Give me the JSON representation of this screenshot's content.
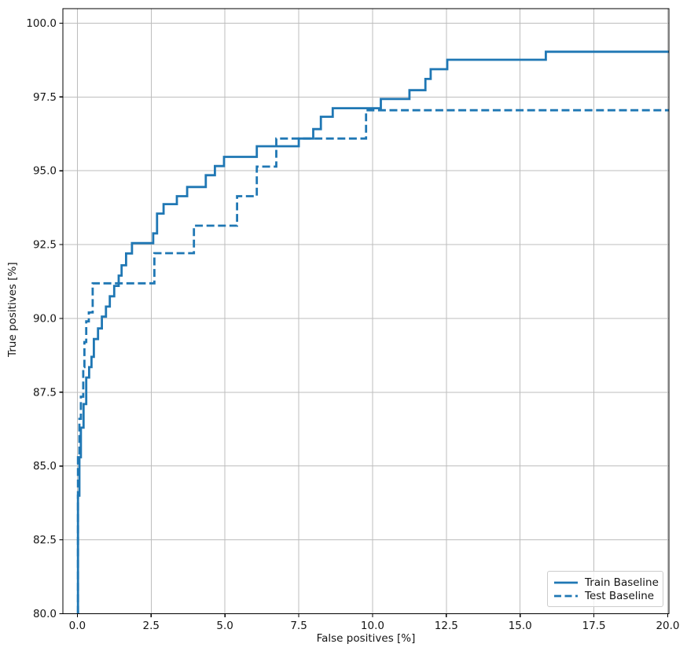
{
  "chart_data": {
    "type": "line",
    "subtype": "step-roc",
    "title": "",
    "xlabel": "False positives [%]",
    "ylabel": "True positives [%]",
    "xlim": [
      -0.49,
      20.04
    ],
    "ylim": [
      80,
      100.49
    ],
    "grid": true,
    "x_ticks": {
      "values": [
        0,
        2.5,
        5,
        7.5,
        10,
        12.5,
        15,
        17.5,
        20
      ],
      "labels": [
        "0.0",
        "2.5",
        "5.0",
        "7.5",
        "10.0",
        "12.5",
        "15.0",
        "17.5",
        "20.0"
      ]
    },
    "y_ticks": {
      "values": [
        80,
        82.5,
        85,
        87.5,
        90,
        92.5,
        95,
        97.5,
        100
      ],
      "labels": [
        "80.0",
        "82.5",
        "85.0",
        "87.5",
        "90.0",
        "92.5",
        "95.0",
        "97.5",
        "100.0"
      ]
    },
    "legend": {
      "position": "lower right",
      "entries": [
        {
          "label": "Train Baseline",
          "style": "solid"
        },
        {
          "label": "Test Baseline",
          "style": "dashed"
        }
      ]
    },
    "colors": {
      "line": "#1f77b4",
      "grid": "#bdbdbd",
      "spine": "#000000",
      "text": "#151515",
      "legend_border": "#cccccc"
    },
    "series": [
      {
        "name": "Train Baseline",
        "style": "solid",
        "points": [
          [
            0.02,
            80
          ],
          [
            0.02,
            84.0
          ],
          [
            0.07,
            84.0
          ],
          [
            0.07,
            85.3
          ],
          [
            0.12,
            85.3
          ],
          [
            0.12,
            86.3
          ],
          [
            0.21,
            86.3
          ],
          [
            0.21,
            87.1
          ],
          [
            0.3,
            87.1
          ],
          [
            0.3,
            88.0
          ],
          [
            0.4,
            88.0
          ],
          [
            0.4,
            88.35
          ],
          [
            0.48,
            88.35
          ],
          [
            0.48,
            88.7
          ],
          [
            0.56,
            88.7
          ],
          [
            0.56,
            89.3
          ],
          [
            0.7,
            89.3
          ],
          [
            0.7,
            89.66
          ],
          [
            0.83,
            89.66
          ],
          [
            0.83,
            90.06
          ],
          [
            0.97,
            90.06
          ],
          [
            0.97,
            90.4
          ],
          [
            1.1,
            90.4
          ],
          [
            1.1,
            90.75
          ],
          [
            1.25,
            90.75
          ],
          [
            1.25,
            91.1
          ],
          [
            1.4,
            91.1
          ],
          [
            1.4,
            91.45
          ],
          [
            1.5,
            91.45
          ],
          [
            1.5,
            91.8
          ],
          [
            1.65,
            91.8
          ],
          [
            1.65,
            92.2
          ],
          [
            1.85,
            92.2
          ],
          [
            1.85,
            92.55
          ],
          [
            2.57,
            92.55
          ],
          [
            2.57,
            92.88
          ],
          [
            2.7,
            92.88
          ],
          [
            2.7,
            93.55
          ],
          [
            2.92,
            93.55
          ],
          [
            2.92,
            93.87
          ],
          [
            3.37,
            93.87
          ],
          [
            3.37,
            94.14
          ],
          [
            3.72,
            94.14
          ],
          [
            3.72,
            94.45
          ],
          [
            4.35,
            94.45
          ],
          [
            4.35,
            94.85
          ],
          [
            4.66,
            94.85
          ],
          [
            4.66,
            95.16
          ],
          [
            4.97,
            95.16
          ],
          [
            4.97,
            95.47
          ],
          [
            6.08,
            95.47
          ],
          [
            6.08,
            95.83
          ],
          [
            7.5,
            95.83
          ],
          [
            7.5,
            96.09
          ],
          [
            7.99,
            96.09
          ],
          [
            7.99,
            96.41
          ],
          [
            8.25,
            96.41
          ],
          [
            8.25,
            96.83
          ],
          [
            8.65,
            96.83
          ],
          [
            8.65,
            97.12
          ],
          [
            10.28,
            97.12
          ],
          [
            10.28,
            97.43
          ],
          [
            11.25,
            97.43
          ],
          [
            11.25,
            97.73
          ],
          [
            11.79,
            97.73
          ],
          [
            11.79,
            98.11
          ],
          [
            11.97,
            98.11
          ],
          [
            11.97,
            98.44
          ],
          [
            12.53,
            98.44
          ],
          [
            12.53,
            98.76
          ],
          [
            15.87,
            98.76
          ],
          [
            15.87,
            99.03
          ],
          [
            20.05,
            99.03
          ]
        ]
      },
      {
        "name": "Test Baseline",
        "style": "dashed",
        "points": [
          [
            0.02,
            80
          ],
          [
            0.02,
            85.3
          ],
          [
            0.07,
            85.3
          ],
          [
            0.07,
            86.6
          ],
          [
            0.12,
            86.6
          ],
          [
            0.12,
            87.35
          ],
          [
            0.2,
            87.35
          ],
          [
            0.2,
            88.35
          ],
          [
            0.24,
            88.35
          ],
          [
            0.24,
            89.2
          ],
          [
            0.3,
            89.2
          ],
          [
            0.3,
            89.9
          ],
          [
            0.39,
            89.9
          ],
          [
            0.39,
            90.2
          ],
          [
            0.52,
            90.2
          ],
          [
            0.52,
            91.19
          ],
          [
            2.61,
            91.19
          ],
          [
            2.61,
            92.21
          ],
          [
            3.95,
            92.21
          ],
          [
            3.95,
            93.14
          ],
          [
            5.41,
            93.14
          ],
          [
            5.41,
            94.14
          ],
          [
            6.08,
            94.14
          ],
          [
            6.08,
            95.14
          ],
          [
            6.74,
            95.14
          ],
          [
            6.74,
            96.09
          ],
          [
            9.78,
            96.09
          ],
          [
            9.78,
            97.05
          ],
          [
            20.05,
            97.05
          ]
        ]
      }
    ]
  }
}
